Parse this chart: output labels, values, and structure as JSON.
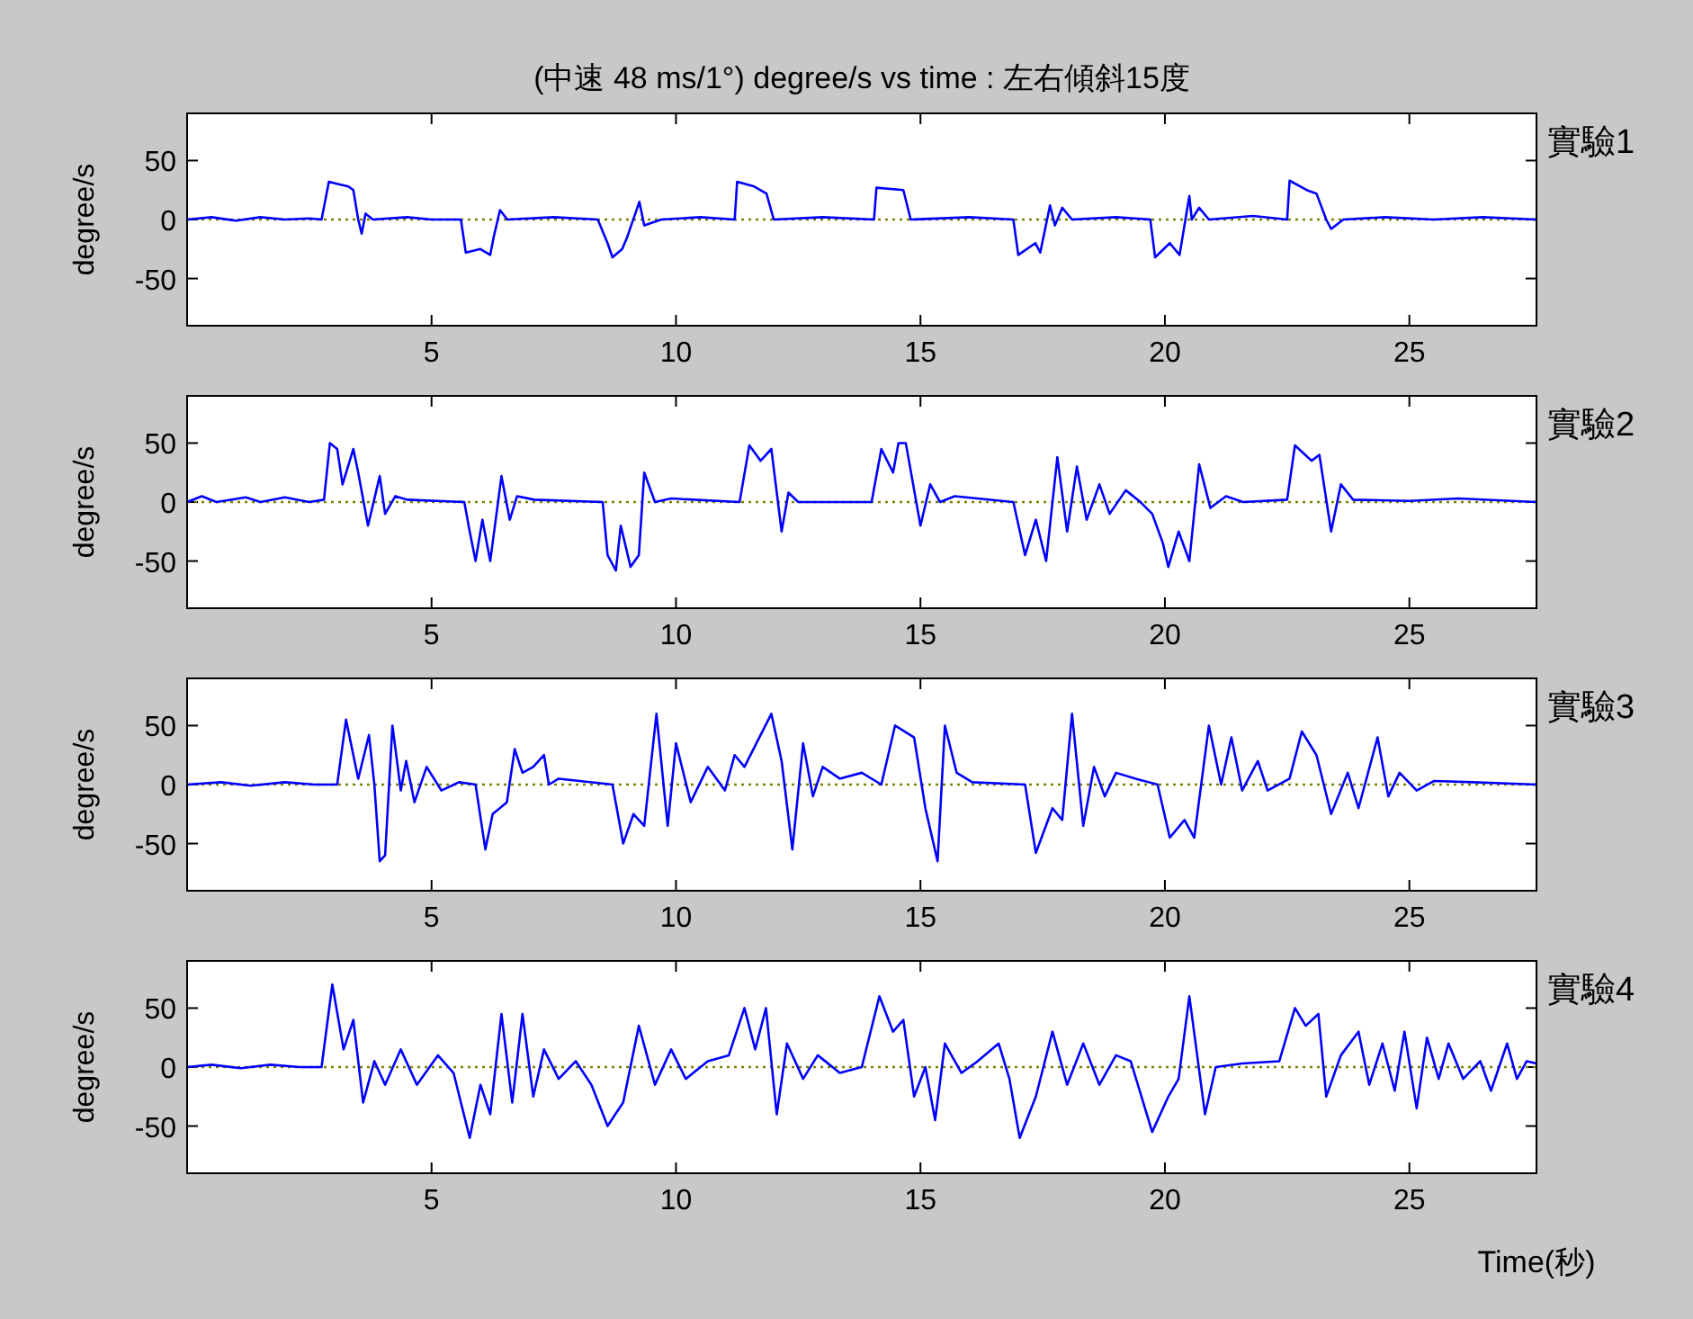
{
  "chart_data": [
    {
      "type": "line",
      "title": "(中速 48 ms/1°) degree/s  vs time : 左右傾斜15度",
      "ylabel": "degree/s",
      "annotations": [
        "實驗1"
      ],
      "x": [
        0,
        0.5,
        1,
        1.5,
        2,
        2.5,
        2.75,
        2.9,
        3.1,
        3.3,
        3.4,
        3.5,
        3.57,
        3.65,
        3.8,
        4.5,
        5.0,
        5.6,
        5.7,
        6.0,
        6.2,
        6.27,
        6.4,
        6.55,
        7.5,
        8.4,
        8.6,
        8.7,
        8.9,
        9.0,
        9.25,
        9.35,
        9.7,
        10.5,
        11.2,
        11.25,
        11.6,
        11.85,
        12.0,
        13.0,
        14.05,
        14.1,
        14.65,
        14.8,
        16,
        16.9,
        17.0,
        17.35,
        17.45,
        17.65,
        17.75,
        17.9,
        18.1,
        19,
        19.7,
        19.8,
        20.1,
        20.3,
        20.5,
        20.55,
        20.7,
        20.9,
        21.8,
        22.5,
        22.55,
        22.9,
        23.1,
        23.3,
        23.4,
        23.65,
        24.5,
        25.5,
        26.5,
        27.6
      ],
      "series": [
        {
          "color": "#0000ff",
          "values": [
            0,
            2,
            -1,
            2,
            0,
            1,
            0,
            32,
            30,
            28,
            25,
            0,
            -12,
            5,
            0,
            2,
            0,
            0,
            -28,
            -25,
            -30,
            -15,
            8,
            0,
            2,
            0,
            -20,
            -32,
            -25,
            -15,
            15,
            -5,
            0,
            2,
            0,
            32,
            28,
            22,
            0,
            2,
            0,
            27,
            25,
            0,
            2,
            0,
            -30,
            -20,
            -28,
            12,
            -5,
            10,
            0,
            2,
            0,
            -32,
            -20,
            -30,
            20,
            0,
            10,
            0,
            3,
            0,
            33,
            25,
            22,
            0,
            -8,
            0,
            2,
            0,
            2,
            0
          ]
        }
      ],
      "xlim": [
        0,
        27.6
      ],
      "ylim": [
        -90,
        90
      ],
      "xticks": [
        5,
        10,
        15,
        20,
        25
      ],
      "yticks": [
        -50,
        0,
        50
      ],
      "ref_lines": [
        {
          "axis": "y",
          "value": 0,
          "color": "#808000",
          "line_style": "dotted"
        }
      ]
    },
    {
      "type": "line",
      "ylabel": "degree/s",
      "annotations": [
        "實驗2"
      ],
      "x": [
        0,
        0.3,
        0.6,
        1.2,
        1.5,
        2,
        2.5,
        2.8,
        2.92,
        3.07,
        3.18,
        3.4,
        3.5,
        3.7,
        3.94,
        4.05,
        4.26,
        4.5,
        5.67,
        5.78,
        5.9,
        6.04,
        6.2,
        6.43,
        6.6,
        6.75,
        7.1,
        8.5,
        8.6,
        8.77,
        8.87,
        9.07,
        9.24,
        9.35,
        9.57,
        9.9,
        11.3,
        11.5,
        11.73,
        11.95,
        12.16,
        12.3,
        12.5,
        14.0,
        14.2,
        14.44,
        14.55,
        14.7,
        15.0,
        15.2,
        15.4,
        15.7,
        16.9,
        17.14,
        17.36,
        17.57,
        17.8,
        18.0,
        18.2,
        18.4,
        18.66,
        18.87,
        19.2,
        19.5,
        19.74,
        19.96,
        20.07,
        20.28,
        20.5,
        20.7,
        20.93,
        21.25,
        21.6,
        22.5,
        22.66,
        23.0,
        23.16,
        23.4,
        23.6,
        23.85,
        25.0,
        26,
        27.6
      ],
      "series": [
        {
          "color": "#0000ff",
          "values": [
            0,
            5,
            0,
            4,
            0,
            4,
            0,
            2,
            50,
            45,
            15,
            45,
            25,
            -20,
            22,
            -10,
            5,
            2,
            0,
            -25,
            -50,
            -15,
            -50,
            22,
            -15,
            5,
            2,
            0,
            -45,
            -58,
            -20,
            -55,
            -45,
            25,
            0,
            3,
            0,
            48,
            35,
            45,
            -25,
            8,
            0,
            0,
            45,
            25,
            50,
            50,
            -20,
            15,
            0,
            5,
            0,
            -45,
            -15,
            -50,
            38,
            -25,
            30,
            -15,
            15,
            -10,
            10,
            0,
            -10,
            -35,
            -55,
            -25,
            -50,
            32,
            -5,
            5,
            0,
            2,
            48,
            35,
            40,
            -25,
            15,
            2,
            1,
            3,
            0
          ]
        }
      ],
      "xlim": [
        0,
        27.6
      ],
      "ylim": [
        -90,
        90
      ],
      "xticks": [
        5,
        10,
        15,
        20,
        25
      ],
      "yticks": [
        -50,
        0,
        50
      ],
      "ref_lines": [
        {
          "axis": "y",
          "value": 0,
          "color": "#808000",
          "line_style": "dotted"
        }
      ]
    },
    {
      "type": "line",
      "ylabel": "degree/s",
      "annotations": [
        "實驗3"
      ],
      "x": [
        0,
        0.7,
        1.3,
        2,
        2.6,
        3.07,
        3.25,
        3.5,
        3.72,
        3.83,
        3.94,
        4.05,
        4.2,
        4.37,
        4.48,
        4.65,
        4.9,
        5.2,
        5.56,
        5.9,
        6.1,
        6.25,
        6.54,
        6.7,
        6.86,
        7.08,
        7.3,
        7.4,
        7.6,
        8.7,
        8.92,
        9.13,
        9.35,
        9.6,
        9.83,
        10.0,
        10.3,
        10.65,
        11.0,
        11.2,
        11.4,
        11.95,
        12.16,
        12.38,
        12.6,
        12.8,
        13.0,
        13.35,
        13.8,
        14.2,
        14.48,
        14.87,
        15.1,
        15.35,
        15.5,
        15.74,
        16.06,
        17.14,
        17.36,
        17.7,
        17.9,
        18.1,
        18.33,
        18.55,
        18.77,
        19.0,
        19.4,
        19.85,
        20.1,
        20.4,
        20.6,
        20.9,
        21.15,
        21.36,
        21.58,
        21.9,
        22.1,
        22.55,
        22.8,
        23.1,
        23.4,
        23.74,
        23.96,
        24.35,
        24.57,
        24.8,
        25.15,
        25.5,
        26.3,
        27.6
      ],
      "series": [
        {
          "color": "#0000ff",
          "values": [
            0,
            2,
            -1,
            2,
            0,
            0,
            55,
            5,
            42,
            0,
            -65,
            -60,
            50,
            -5,
            20,
            -15,
            15,
            -5,
            2,
            0,
            -55,
            -25,
            -15,
            30,
            10,
            15,
            25,
            0,
            5,
            0,
            -50,
            -25,
            -35,
            60,
            -35,
            35,
            -15,
            15,
            -5,
            25,
            15,
            60,
            20,
            -55,
            35,
            -10,
            15,
            5,
            10,
            0,
            50,
            40,
            -20,
            -65,
            50,
            10,
            2,
            0,
            -58,
            -20,
            -30,
            60,
            -35,
            15,
            -10,
            10,
            5,
            0,
            -45,
            -30,
            -45,
            50,
            0,
            40,
            -5,
            20,
            -5,
            5,
            45,
            25,
            -25,
            10,
            -20,
            40,
            -10,
            10,
            -5,
            3,
            2,
            0
          ]
        }
      ],
      "xlim": [
        0,
        27.6
      ],
      "ylim": [
        -90,
        90
      ],
      "xticks": [
        5,
        10,
        15,
        20,
        25
      ],
      "yticks": [
        -50,
        0,
        50
      ],
      "ref_lines": [
        {
          "axis": "y",
          "value": 0,
          "color": "#808000",
          "line_style": "dotted"
        }
      ]
    },
    {
      "type": "line",
      "xlabel": "Time(秒)",
      "ylabel": "degree/s",
      "annotations": [
        "實驗4"
      ],
      "x": [
        0,
        0.5,
        1.1,
        1.7,
        2.3,
        2.75,
        2.97,
        3.2,
        3.4,
        3.6,
        3.83,
        4.05,
        4.37,
        4.7,
        5.13,
        5.45,
        5.78,
        6.0,
        6.2,
        6.43,
        6.65,
        6.86,
        7.08,
        7.3,
        7.6,
        7.95,
        8.27,
        8.6,
        8.92,
        9.24,
        9.57,
        9.9,
        10.2,
        10.65,
        11.08,
        11.4,
        11.62,
        11.84,
        12.06,
        12.27,
        12.6,
        12.9,
        13.35,
        13.8,
        14.16,
        14.44,
        14.65,
        14.87,
        15.1,
        15.3,
        15.5,
        15.84,
        16.17,
        16.6,
        16.82,
        17.03,
        17.36,
        17.7,
        18.0,
        18.33,
        18.66,
        19.0,
        19.3,
        19.74,
        20.07,
        20.28,
        20.5,
        20.82,
        21.04,
        21.58,
        22.34,
        22.66,
        22.88,
        23.14,
        23.3,
        23.6,
        23.96,
        24.18,
        24.45,
        24.7,
        24.9,
        25.15,
        25.36,
        25.6,
        25.8,
        26.1,
        26.45,
        26.67,
        27.0,
        27.2,
        27.4,
        27.6
      ],
      "series": [
        {
          "color": "#0000ff",
          "values": [
            0,
            2,
            -1,
            2,
            0,
            0,
            70,
            15,
            40,
            -30,
            5,
            -15,
            15,
            -15,
            10,
            -5,
            -60,
            -15,
            -40,
            45,
            -30,
            45,
            -25,
            15,
            -10,
            5,
            -15,
            -50,
            -30,
            35,
            -15,
            15,
            -10,
            5,
            10,
            50,
            15,
            50,
            -40,
            20,
            -10,
            10,
            -5,
            0,
            60,
            30,
            40,
            -25,
            0,
            -45,
            20,
            -5,
            5,
            20,
            -10,
            -60,
            -25,
            30,
            -15,
            20,
            -15,
            10,
            5,
            -55,
            -25,
            -10,
            60,
            -40,
            0,
            3,
            5,
            50,
            35,
            45,
            -25,
            10,
            30,
            -15,
            20,
            -20,
            30,
            -35,
            25,
            -10,
            20,
            -10,
            5,
            -20,
            20,
            -10,
            5,
            3
          ]
        }
      ],
      "xlim": [
        0,
        27.6
      ],
      "ylim": [
        -90,
        90
      ],
      "xticks": [
        5,
        10,
        15,
        20,
        25
      ],
      "yticks": [
        -50,
        0,
        50
      ],
      "ref_lines": [
        {
          "axis": "y",
          "value": 0,
          "color": "#808000",
          "line_style": "dotted"
        }
      ]
    }
  ]
}
